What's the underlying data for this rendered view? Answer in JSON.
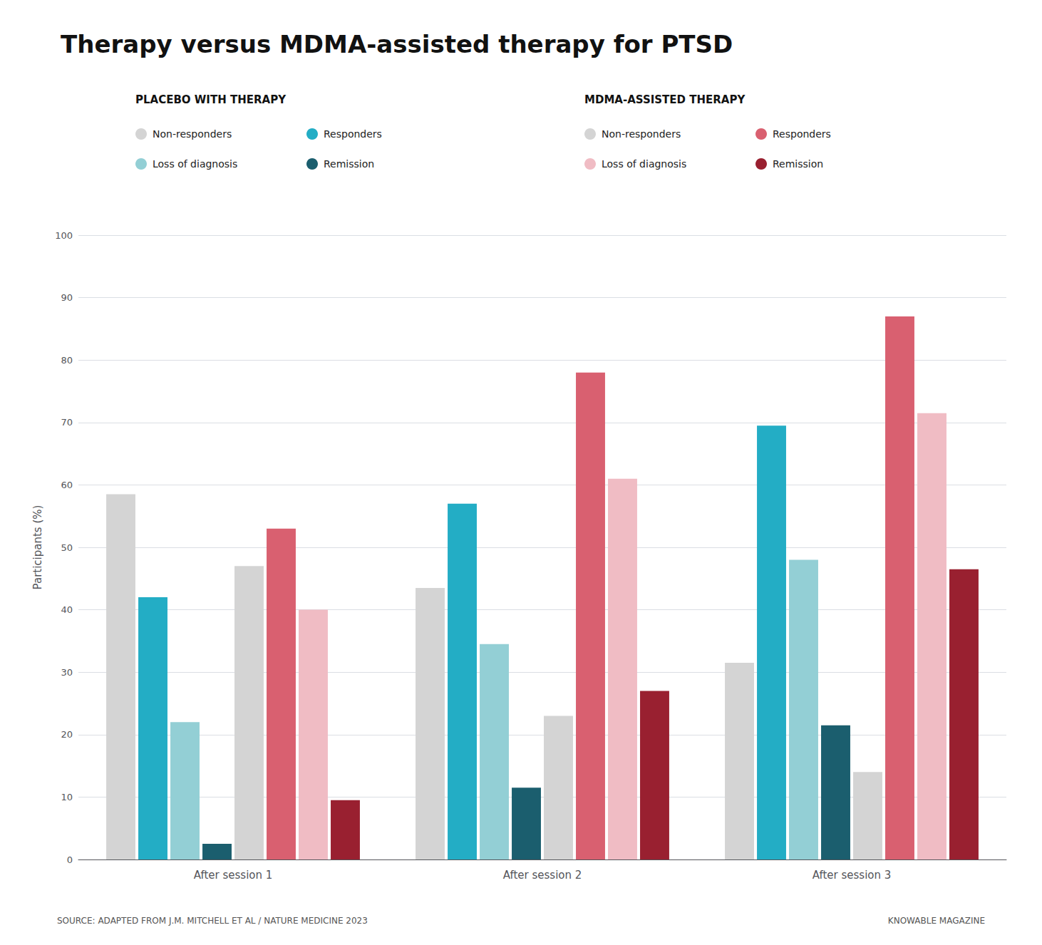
{
  "chart_data": {
    "type": "bar",
    "title": "Therapy versus MDMA-assisted therapy for PTSD",
    "ylabel": "Participants (%)",
    "categories": [
      "After session 1",
      "After session 2",
      "After session 3"
    ],
    "series": [
      {
        "name": "Non-responders",
        "color": "#d4d4d4",
        "values": [
          58.5,
          43.5,
          31.5
        ]
      },
      {
        "name": "Responders",
        "color": "#23adc5",
        "values": [
          42.0,
          57.0,
          69.5
        ]
      },
      {
        "name": "Loss of diagnosis",
        "color": "#93cfd5",
        "values": [
          22.0,
          34.5,
          48.0
        ]
      },
      {
        "name": "Remission",
        "color": "#1b5e6e",
        "values": [
          2.5,
          11.5,
          21.5
        ]
      },
      {
        "name": "Non-responders",
        "color": "#d4d4d4",
        "values": [
          47.0,
          23.0,
          14.0
        ]
      },
      {
        "name": "Responders",
        "color": "#d96070",
        "values": [
          53.0,
          78.0,
          87.0
        ]
      },
      {
        "name": "Loss of diagnosis",
        "color": "#f0bcc4",
        "values": [
          40.0,
          61.0,
          71.5
        ]
      },
      {
        "name": "Remission",
        "color": "#992030",
        "values": [
          9.5,
          27.0,
          46.5
        ]
      }
    ],
    "annotations": [
      "PLACEBO WITH THERAPY",
      "MDMA-ASSISTED THERAPY",
      "SOURCE: ADAPTED FROM J.M. MITCHELL ET AL / NATURE MEDICINE 2023",
      "KNOWABLE MAGAZINE"
    ],
    "ylim": [
      0,
      100
    ],
    "yticks": [
      0,
      10,
      20,
      30,
      40,
      50,
      60,
      70,
      80,
      90,
      100
    ],
    "grid": true,
    "legend": "top"
  }
}
